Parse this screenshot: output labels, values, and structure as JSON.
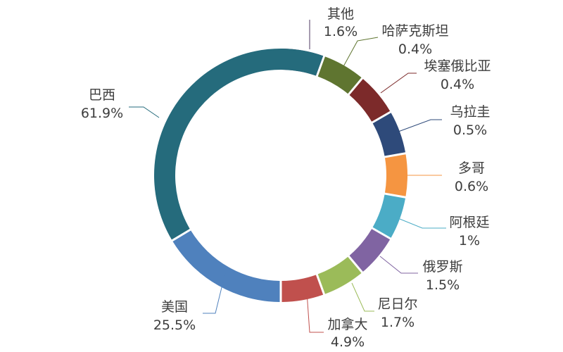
{
  "chart_data": {
    "type": "pie",
    "variant": "donut",
    "title": "",
    "start": "12 o'clock, clockwise",
    "slices": [
      {
        "label": "其他",
        "value_text": "1.6%",
        "value": 1.6,
        "color": "#4e3a62"
      },
      {
        "label": "哈萨克斯坦",
        "value_text": "0.4%",
        "value": 0.4,
        "color": "#5f7530"
      },
      {
        "label": "埃塞俄比亚",
        "value_text": "0.4%",
        "value": 0.4,
        "color": "#7c2a2a"
      },
      {
        "label": "乌拉圭",
        "value_text": "0.5%",
        "value": 0.5,
        "color": "#2e4a7a"
      },
      {
        "label": "多哥",
        "value_text": "0.6%",
        "value": 0.6,
        "color": "#f59541"
      },
      {
        "label": "阿根廷",
        "value_text": "1%",
        "value": 1.0,
        "color": "#4bacc6"
      },
      {
        "label": "俄罗斯",
        "value_text": "1.5%",
        "value": 1.5,
        "color": "#8064a2"
      },
      {
        "label": "尼日尔",
        "value_text": "1.7%",
        "value": 1.7,
        "color": "#9bbb59"
      },
      {
        "label": "加拿大",
        "value_text": "4.9%",
        "value": 4.9,
        "color": "#c0504d"
      },
      {
        "label": "美国",
        "value_text": "25.5%",
        "value": 25.5,
        "color": "#4f81bd"
      },
      {
        "label": "巴西",
        "value_text": "61.9%",
        "value": 61.9,
        "color": "#256b7c"
      }
    ]
  }
}
